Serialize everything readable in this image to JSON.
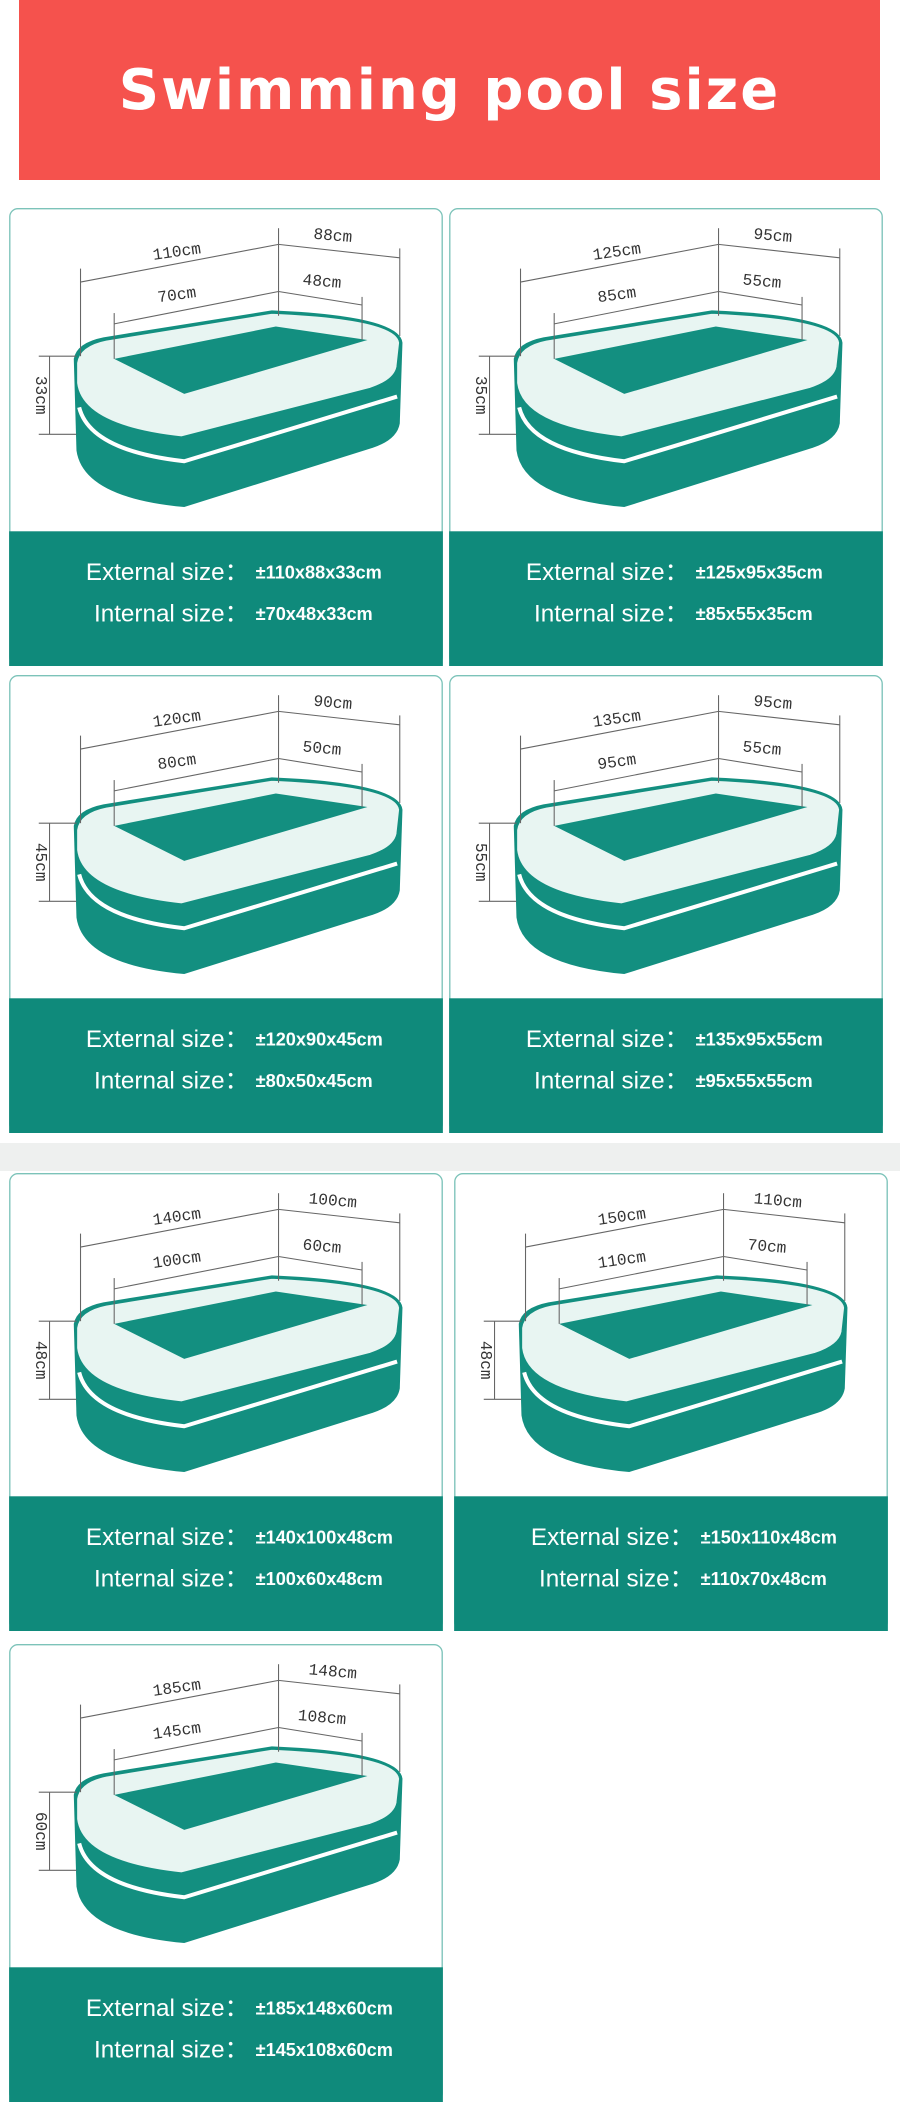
{
  "header": {
    "title": "Swimming pool size"
  },
  "cards": [
    {
      "outer_length": "110cm",
      "outer_width": "88cm",
      "inner_length": "70cm",
      "inner_width": "48cm",
      "height": "33cm",
      "external_label": "External size：",
      "external_value": "±110x88x33cm",
      "internal_label": "Internal size：",
      "internal_value": "±70x48x33cm"
    },
    {
      "outer_length": "125cm",
      "outer_width": "95cm",
      "inner_length": "85cm",
      "inner_width": "55cm",
      "height": "35cm",
      "external_label": "External size：",
      "external_value": "±125x95x35cm",
      "internal_label": "Internal size：",
      "internal_value": "±85x55x35cm"
    },
    {
      "outer_length": "120cm",
      "outer_width": "90cm",
      "inner_length": "80cm",
      "inner_width": "50cm",
      "height": "45cm",
      "external_label": "External size：",
      "external_value": "±120x90x45cm",
      "internal_label": "Internal size：",
      "internal_value": "±80x50x45cm"
    },
    {
      "outer_length": "135cm",
      "outer_width": "95cm",
      "inner_length": "95cm",
      "inner_width": "55cm",
      "height": "55cm",
      "external_label": "External size：",
      "external_value": "±135x95x55cm",
      "internal_label": "Internal size：",
      "internal_value": "±95x55x55cm"
    },
    {
      "outer_length": "140cm",
      "outer_width": "100cm",
      "inner_length": "100cm",
      "inner_width": "60cm",
      "height": "48cm",
      "external_label": "External size：",
      "external_value": "±140x100x48cm",
      "internal_label": "Internal size：",
      "internal_value": "±100x60x48cm"
    },
    {
      "outer_length": "150cm",
      "outer_width": "110cm",
      "inner_length": "110cm",
      "inner_width": "70cm",
      "height": "48cm",
      "external_label": "External size：",
      "external_value": "±150x110x48cm",
      "internal_label": "Internal size：",
      "internal_value": "±110x70x48cm"
    },
    {
      "outer_length": "185cm",
      "outer_width": "148cm",
      "inner_length": "145cm",
      "inner_width": "108cm",
      "height": "60cm",
      "external_label": "External size：",
      "external_value": "±185x148x60cm",
      "internal_label": "Internal size：",
      "internal_value": "±145x108x60cm"
    }
  ]
}
